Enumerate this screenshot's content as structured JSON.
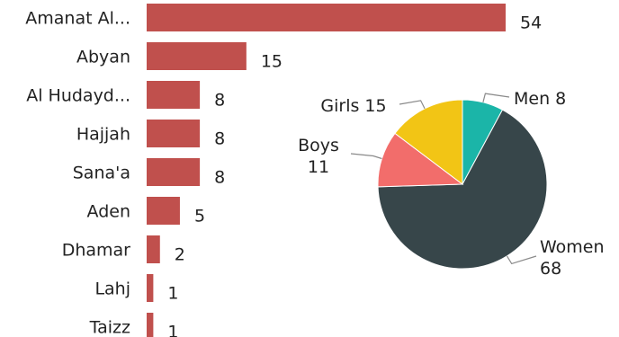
{
  "chart_data": [
    {
      "type": "bar",
      "orientation": "horizontal",
      "categories": [
        "Amanat Al...",
        "Abyan",
        "Al Hudayd...",
        "Hajjah",
        "Sana'a",
        "Aden",
        "Dhamar",
        "Lahj",
        "Taizz"
      ],
      "values": [
        54,
        15,
        8,
        8,
        8,
        5,
        2,
        1,
        1
      ],
      "title": "",
      "xlabel": "",
      "ylabel": "",
      "color": "#c0504d",
      "grid": false,
      "legend": "none"
    },
    {
      "type": "pie",
      "labels": [
        "Men",
        "Women",
        "Boys",
        "Girls"
      ],
      "values": [
        8,
        68,
        11,
        15
      ],
      "colors": [
        "#1bb5a8",
        "#37464a",
        "#f26d6b",
        "#f2c515"
      ],
      "title": "",
      "legend": "none"
    }
  ]
}
